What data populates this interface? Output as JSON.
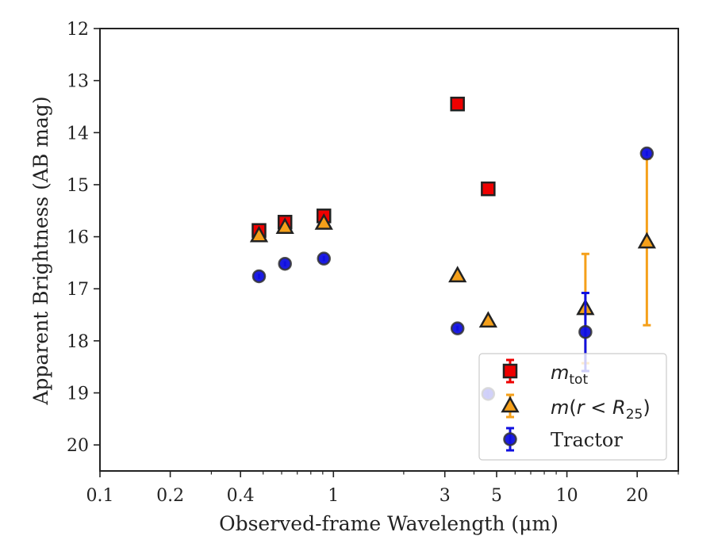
{
  "chart_data": {
    "type": "scatter",
    "xlabel": "Observed-frame Wavelength (μm)",
    "ylabel": "Apparent Brightness (AB mag)",
    "xscale": "log",
    "xlim": [
      0.1,
      30
    ],
    "ylim": [
      20.5,
      12
    ],
    "y_inverted": true,
    "grid": false,
    "legend_position": "bottom-right",
    "x_ticks": [
      {
        "value": 0.1,
        "label": "0.1"
      },
      {
        "value": 0.2,
        "label": "0.2"
      },
      {
        "value": 0.4,
        "label": "0.4"
      },
      {
        "value": 1,
        "label": "1"
      },
      {
        "value": 3,
        "label": "3"
      },
      {
        "value": 5,
        "label": "5"
      },
      {
        "value": 10,
        "label": "10"
      },
      {
        "value": 20,
        "label": "20"
      }
    ],
    "y_ticks": [
      {
        "value": 12,
        "label": "12"
      },
      {
        "value": 13,
        "label": "13"
      },
      {
        "value": 14,
        "label": "14"
      },
      {
        "value": 15,
        "label": "15"
      },
      {
        "value": 16,
        "label": "16"
      },
      {
        "value": 17,
        "label": "17"
      },
      {
        "value": 18,
        "label": "18"
      },
      {
        "value": 19,
        "label": "19"
      },
      {
        "value": 20,
        "label": "20"
      }
    ],
    "series": [
      {
        "name": "m_tot",
        "marker": "square",
        "color": "#ee0000",
        "edge_color": "#222222",
        "points": [
          {
            "x": 0.48,
            "y": 15.88,
            "yerr": 0.1
          },
          {
            "x": 0.62,
            "y": 15.72,
            "yerr": 0.08
          },
          {
            "x": 0.91,
            "y": 15.6,
            "yerr": 0.06
          },
          {
            "x": 3.4,
            "y": 13.45,
            "yerr": 0.03
          },
          {
            "x": 4.6,
            "y": 15.08,
            "yerr": 0.04
          }
        ]
      },
      {
        "name": "m(r < R25)",
        "marker": "triangle",
        "color": "#f5a01a",
        "edge_color": "#222222",
        "points": [
          {
            "x": 0.48,
            "y": 15.98,
            "yerr": 0.06
          },
          {
            "x": 0.62,
            "y": 15.82,
            "yerr": 0.06
          },
          {
            "x": 0.91,
            "y": 15.74,
            "yerr": 0.05
          },
          {
            "x": 3.4,
            "y": 16.75,
            "yerr": 0.06
          },
          {
            "x": 4.6,
            "y": 17.62,
            "yerr": 0.1
          },
          {
            "x": 12,
            "y": 17.38,
            "yerr": 1.05
          },
          {
            "x": 22,
            "y": 16.1,
            "yerr": 1.6
          }
        ]
      },
      {
        "name": "Tractor",
        "marker": "circle",
        "color": "#1010e0",
        "edge_color": "#333333",
        "points": [
          {
            "x": 0.48,
            "y": 16.76,
            "yerr": 0.05
          },
          {
            "x": 0.62,
            "y": 16.52,
            "yerr": 0.05
          },
          {
            "x": 0.91,
            "y": 16.42,
            "yerr": 0.05
          },
          {
            "x": 3.4,
            "y": 17.76,
            "yerr": 0.05
          },
          {
            "x": 4.6,
            "y": 19.02,
            "yerr": 0.07
          },
          {
            "x": 12,
            "y": 17.83,
            "yerr": 0.75
          },
          {
            "x": 22,
            "y": 14.4,
            "yerr": 0.05
          }
        ]
      }
    ]
  },
  "legend": {
    "m_tot_main": "m",
    "m_tot_sub": "tot",
    "m_r_prefix": "m",
    "m_r_mid": "(",
    "m_r_var": "r",
    "m_r_lt": " < ",
    "m_r_R": "R",
    "m_r_sub": "25",
    "m_r_close": ")",
    "tractor": "Tractor"
  }
}
